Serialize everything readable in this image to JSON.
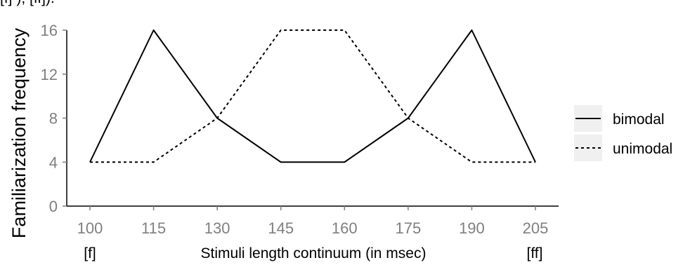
{
  "chart_data": {
    "type": "line",
    "x": [
      100,
      115,
      130,
      145,
      160,
      175,
      190,
      205
    ],
    "x_tick_labels": [
      "100",
      "115",
      "130",
      "145",
      "160",
      "175",
      "190",
      "205"
    ],
    "y_ticks": [
      0,
      4,
      8,
      12,
      16
    ],
    "y_tick_labels": [
      "0",
      "4",
      "8",
      "12",
      "16"
    ],
    "xlim": [
      100,
      205
    ],
    "ylim": [
      0,
      16
    ],
    "xlabel": "Stimuli length continuum (in msec)",
    "ylabel": "Familiarization frequency",
    "x_end_labels": {
      "left": "[f]",
      "right": "[ff]"
    },
    "top_clipped_text": "[f] ), [ff]).",
    "grid": false,
    "legend_position": "right",
    "series": [
      {
        "name": "bimodal",
        "linestyle": "solid",
        "color": "#000000",
        "values": [
          4,
          16,
          8,
          4,
          4,
          8,
          16,
          4
        ]
      },
      {
        "name": "unimodal",
        "linestyle": "dashed",
        "color": "#000000",
        "values": [
          4,
          4,
          8,
          16,
          16,
          8,
          4,
          4
        ]
      }
    ]
  }
}
